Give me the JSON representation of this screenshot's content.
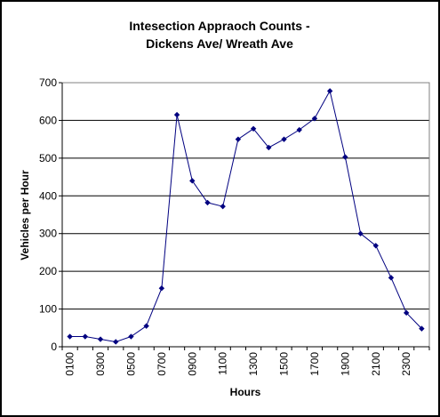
{
  "chart_data": {
    "type": "line",
    "title": [
      "Intesection Appraoch Counts -",
      "Dickens Ave/ Wreath Ave"
    ],
    "xlabel": "Hours",
    "ylabel": "Vehicles per Hour",
    "ylim": [
      0,
      700
    ],
    "yticks": [
      "0",
      "100",
      "200",
      "300",
      "400",
      "500",
      "600",
      "700"
    ],
    "grid": true,
    "legend": "none",
    "categories": [
      "0100",
      "0200",
      "0300",
      "0400",
      "0500",
      "0600",
      "0700",
      "0800",
      "0900",
      "1000",
      "1100",
      "1200",
      "1300",
      "1400",
      "1500",
      "1600",
      "1700",
      "1800",
      "1900",
      "2000",
      "2100",
      "2200",
      "2300",
      "2400"
    ],
    "xtick_labels": [
      "0100",
      "",
      "0300",
      "",
      "0500",
      "",
      "0700",
      "",
      "0900",
      "",
      "1100",
      "",
      "1300",
      "",
      "1500",
      "",
      "1700",
      "",
      "1900",
      "",
      "2100",
      "",
      "2300",
      ""
    ],
    "series": [
      {
        "values": [
          27,
          27,
          20,
          13,
          27,
          55,
          155,
          615,
          440,
          382,
          372,
          550,
          578,
          528,
          550,
          575,
          605,
          678,
          503,
          300,
          268,
          183,
          90,
          48
        ],
        "color": "#000080"
      }
    ]
  }
}
